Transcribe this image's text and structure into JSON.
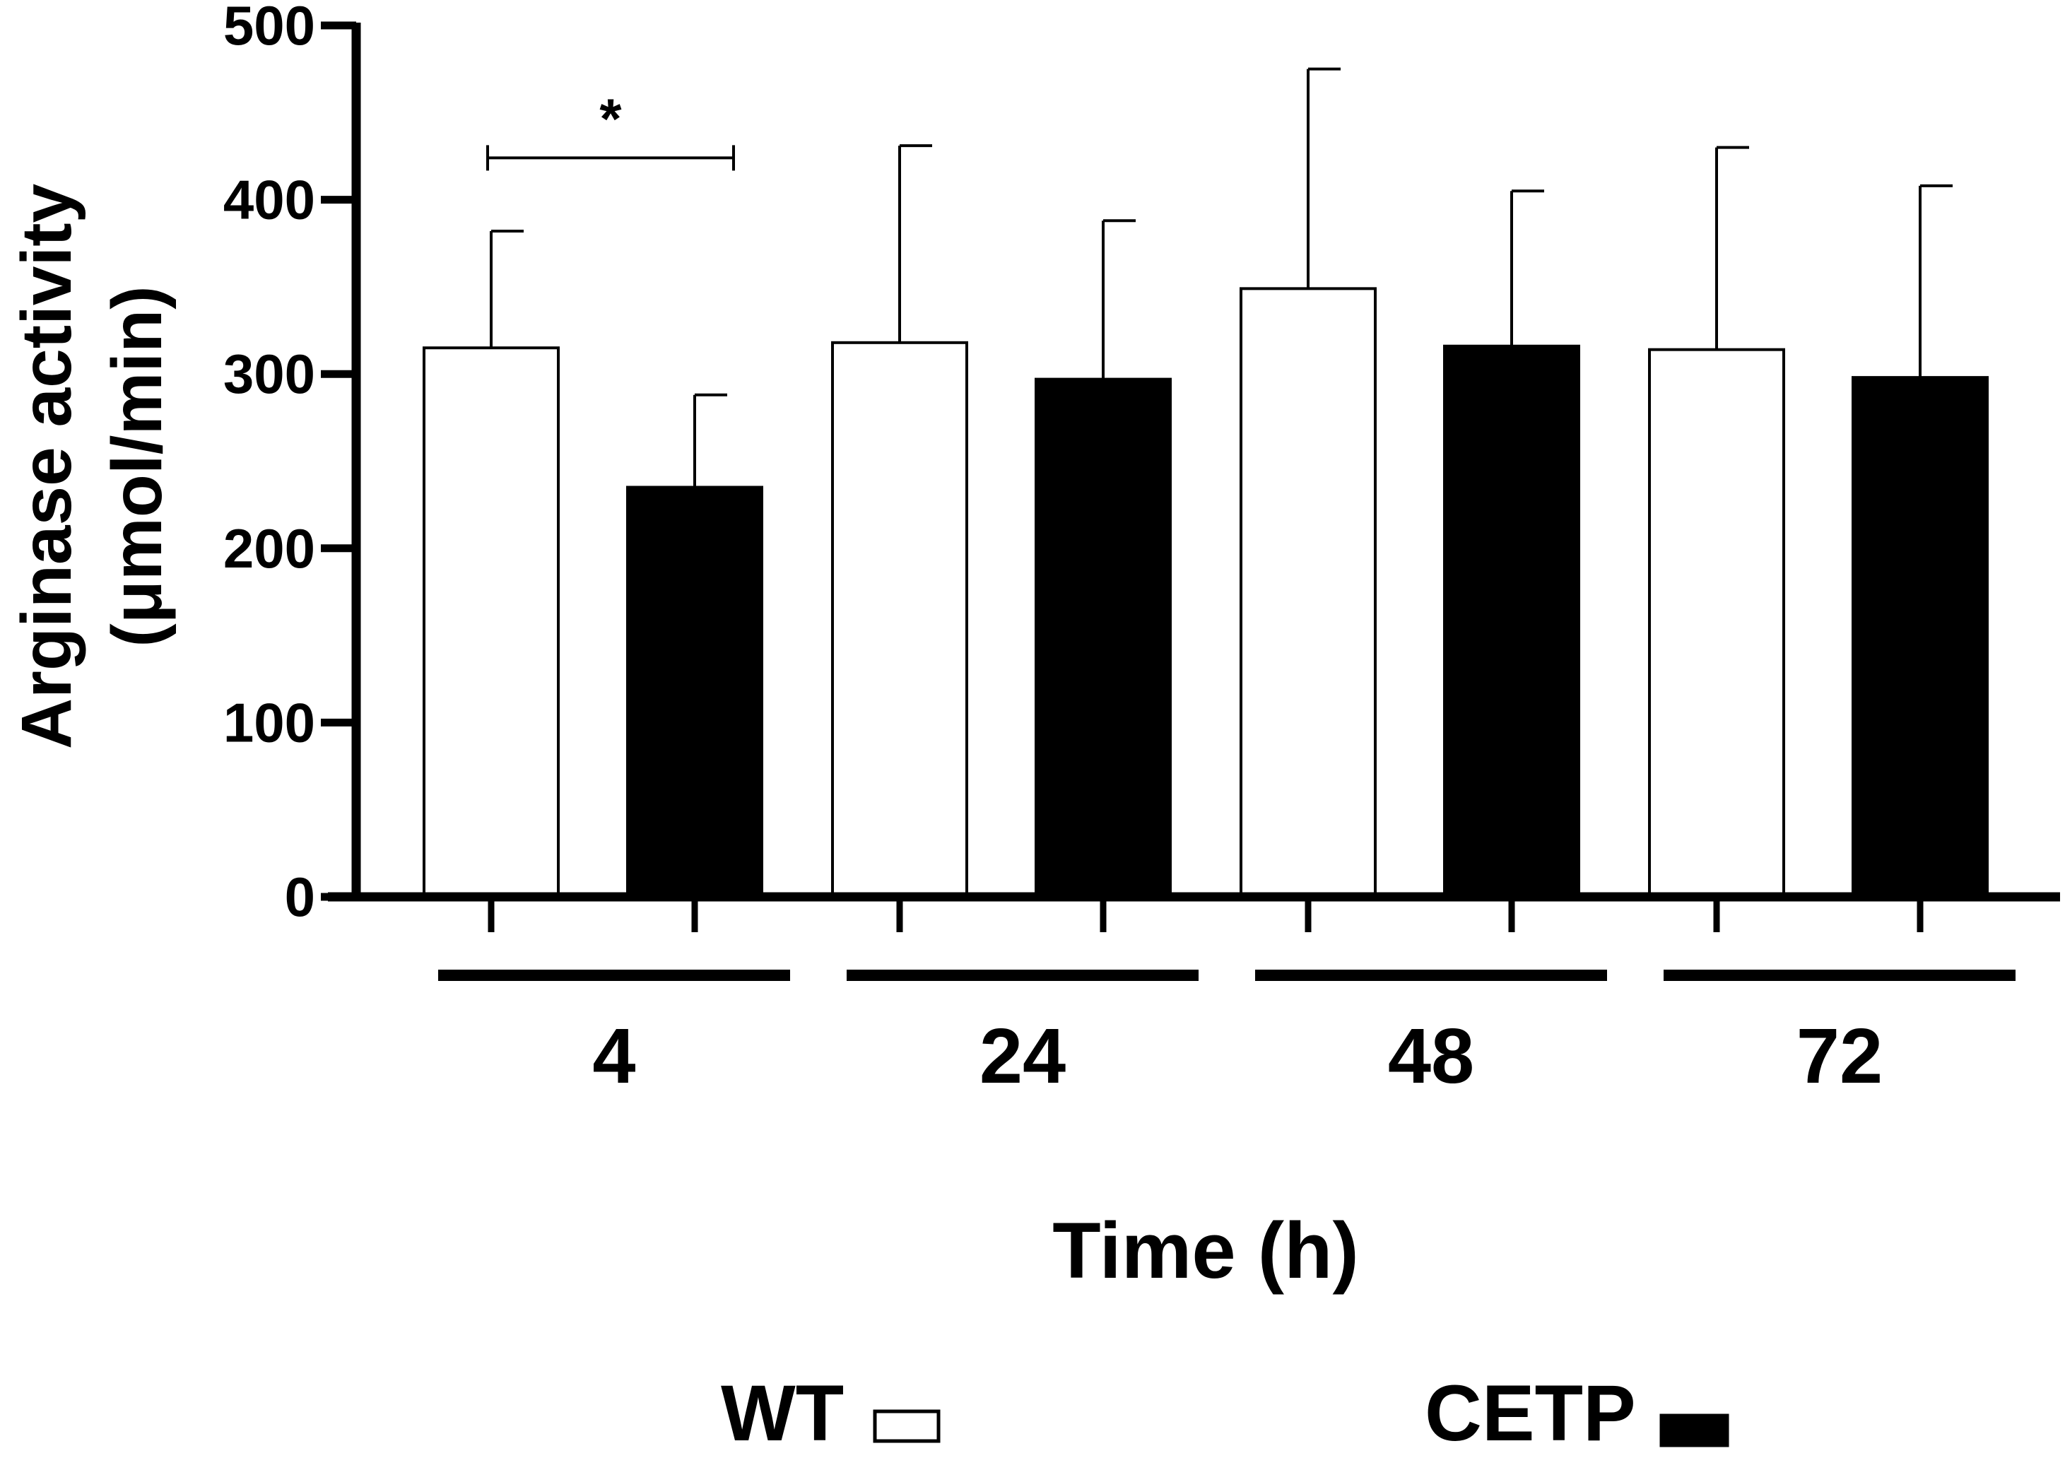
{
  "chart_data": {
    "type": "bar",
    "title": "",
    "xlabel": "Time (h)",
    "ylabel_line1": "Arginase activity",
    "ylabel_line2": "(μmol/min)",
    "ylim": [
      0,
      500
    ],
    "yticks": [
      "0",
      "100",
      "200",
      "300",
      "400",
      "500"
    ],
    "categories": [
      "4",
      "24",
      "48",
      "72"
    ],
    "series": [
      {
        "name": "WT",
        "fill": "#ffffff",
        "stroke": "#000000",
        "values": [
          315,
          318,
          349,
          314
        ],
        "errors": [
          67,
          113,
          126,
          116
        ]
      },
      {
        "name": "CETP",
        "fill": "#000000",
        "stroke": "#000000",
        "values": [
          235,
          297,
          316,
          298
        ],
        "errors": [
          53,
          91,
          89,
          110
        ]
      }
    ],
    "significance": {
      "label": "*",
      "category": "4",
      "y": 424
    },
    "legend": {
      "wt_label": "WT",
      "cetp_label": "CETP",
      "placement": "bottom"
    }
  }
}
